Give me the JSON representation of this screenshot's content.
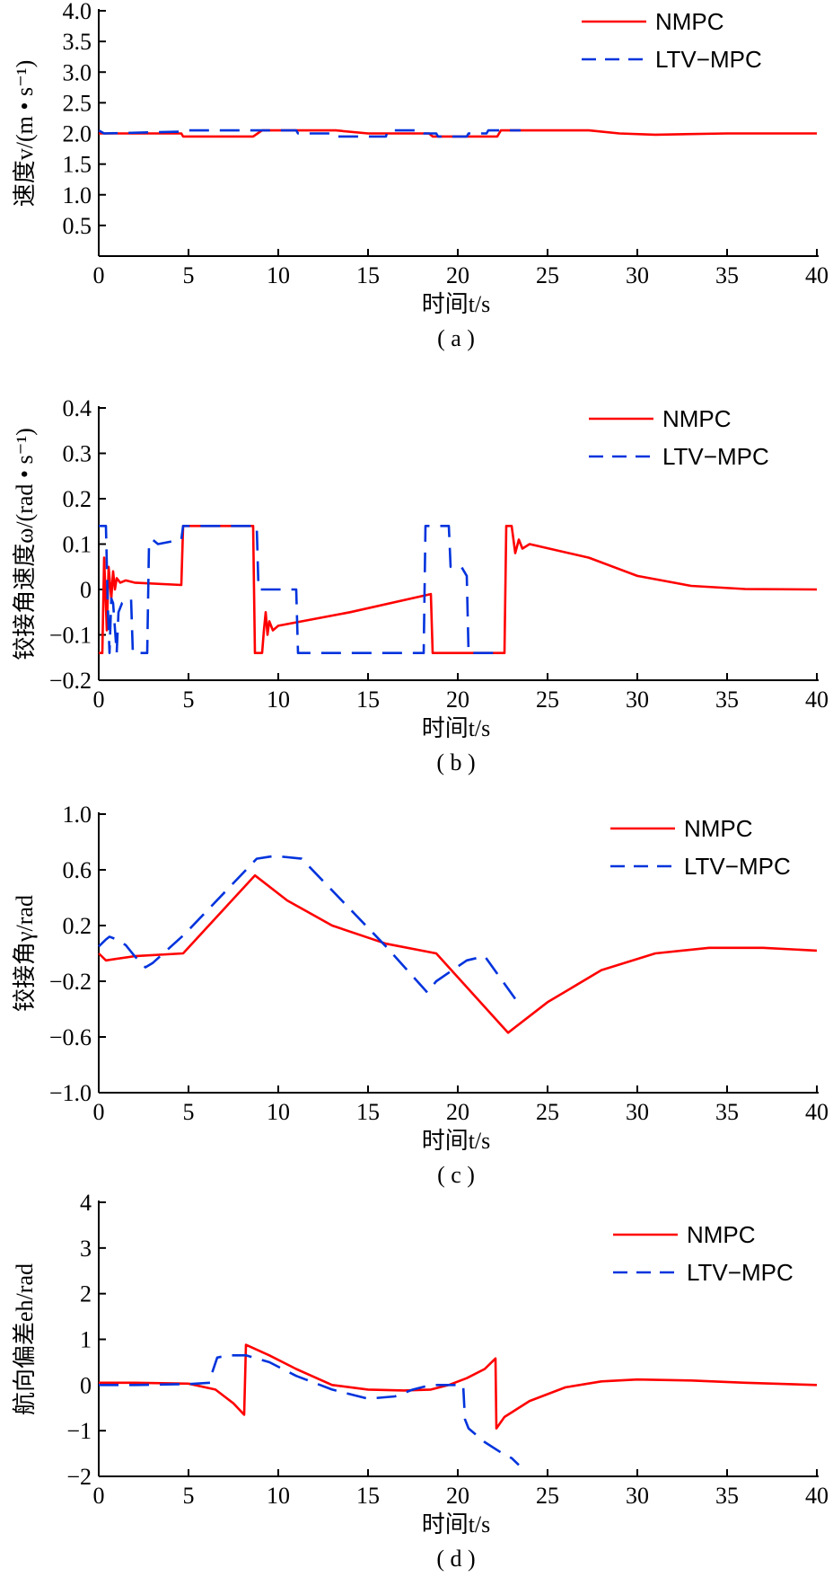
{
  "legend": {
    "nmpc": "NMPC",
    "ltv": "LTV−MPC"
  },
  "colors": {
    "nmpc": "#ff0000",
    "ltv": "#0033dd"
  },
  "chart_data": [
    {
      "type": "line",
      "caption": "( a )",
      "xlabel": "时间t/s",
      "ylabel": "速度v/(m • s⁻¹)",
      "xlim": [
        0,
        40
      ],
      "ylim": [
        0,
        4.0
      ],
      "xticks": [
        0,
        5,
        10,
        15,
        20,
        25,
        30,
        35,
        40
      ],
      "xtick_labels": [
        "0",
        "5",
        "10",
        "15",
        "20",
        "25",
        "30",
        "35",
        "40"
      ],
      "yticks": [
        0.5,
        1.0,
        1.5,
        2.0,
        2.5,
        3.0,
        3.5,
        4.0
      ],
      "ytick_labels": [
        "0.5",
        "1.0",
        "1.5",
        "2.0",
        "2.5",
        "3.0",
        "3.5",
        "4.0"
      ],
      "series": [
        {
          "name": "NMPC",
          "style": "solid",
          "x": [
            0,
            4.6,
            4.7,
            8.6,
            9.1,
            13.2,
            15,
            18.4,
            18.6,
            22.2,
            22.4,
            27.3,
            29,
            31,
            35,
            40
          ],
          "y": [
            2.0,
            2.0,
            1.95,
            1.95,
            2.05,
            2.05,
            2.0,
            2.0,
            1.95,
            1.95,
            2.05,
            2.05,
            2.0,
            1.98,
            2.0,
            2.0
          ]
        },
        {
          "name": "LTV−MPC",
          "style": "dashed",
          "x": [
            0,
            0.3,
            4.6,
            4.8,
            9.0,
            9.1,
            11.0,
            11.1,
            13.2,
            13.3,
            16.0,
            16.1,
            18.0,
            18.1,
            18.8,
            18.9,
            20.5,
            20.6,
            21.6,
            21.7,
            23.5
          ],
          "y": [
            2.05,
            2.0,
            2.03,
            2.05,
            2.05,
            2.05,
            2.05,
            2.0,
            2.0,
            1.95,
            1.95,
            2.05,
            2.05,
            2.0,
            2.0,
            1.95,
            1.95,
            2.0,
            2.0,
            2.05,
            2.05
          ]
        }
      ]
    },
    {
      "type": "line",
      "caption": "( b )",
      "xlabel": "时间t/s",
      "ylabel": "铰接角速度ω/(rad • s⁻¹)",
      "xlim": [
        0,
        40
      ],
      "ylim": [
        -0.2,
        0.4
      ],
      "xticks": [
        0,
        5,
        10,
        15,
        20,
        25,
        30,
        35,
        40
      ],
      "xtick_labels": [
        "0",
        "5",
        "10",
        "15",
        "20",
        "25",
        "30",
        "35",
        "40"
      ],
      "yticks": [
        -0.2,
        -0.1,
        0,
        0.1,
        0.2,
        0.3,
        0.4
      ],
      "ytick_labels": [
        "−0.2",
        "−0.1",
        "0",
        "0.1",
        "0.2",
        "0.3",
        "0.4"
      ],
      "series": [
        {
          "name": "NMPC",
          "style": "solid",
          "x": [
            0,
            0.2,
            0.3,
            0.45,
            0.55,
            0.7,
            0.8,
            0.9,
            1.0,
            1.2,
            1.5,
            2.0,
            4.6,
            4.7,
            8.6,
            8.7,
            9.1,
            9.2,
            9.3,
            9.4,
            9.5,
            9.7,
            10.0,
            14.0,
            18.5,
            18.6,
            22.6,
            22.7,
            23.0,
            23.2,
            23.4,
            23.6,
            24.0,
            27.3,
            30,
            33,
            36,
            40
          ],
          "y": [
            -0.14,
            -0.14,
            0.07,
            -0.09,
            0.05,
            -0.02,
            0.04,
            0.0,
            0.025,
            0.015,
            0.02,
            0.015,
            0.01,
            0.14,
            0.14,
            -0.14,
            -0.14,
            -0.09,
            -0.05,
            -0.1,
            -0.07,
            -0.09,
            -0.08,
            -0.05,
            -0.01,
            -0.14,
            -0.14,
            0.14,
            0.14,
            0.08,
            0.11,
            0.09,
            0.1,
            0.07,
            0.03,
            0.008,
            0.001,
            0
          ]
        },
        {
          "name": "LTV−MPC",
          "style": "dashed",
          "x": [
            0,
            0.4,
            0.5,
            0.6,
            0.7,
            0.8,
            1.0,
            1.1,
            1.3,
            1.8,
            1.9,
            2.7,
            2.8,
            3.0,
            3.3,
            4.6,
            4.7,
            8.8,
            8.9,
            11.0,
            11.1,
            18.1,
            18.2,
            19.5,
            19.6,
            20.2,
            20.5,
            20.6,
            22.5
          ],
          "y": [
            0.14,
            0.14,
            -0.03,
            -0.14,
            -0.02,
            -0.03,
            -0.14,
            -0.05,
            -0.03,
            -0.02,
            -0.14,
            -0.14,
            0.1,
            0.11,
            0.1,
            0.11,
            0.14,
            0.14,
            0.0,
            0.0,
            -0.14,
            -0.14,
            0.14,
            0.14,
            0.05,
            0.05,
            0.03,
            -0.14,
            -0.14
          ]
        }
      ]
    },
    {
      "type": "line",
      "caption": "( c )",
      "xlabel": "时间t/s",
      "ylabel": "铰接角γ/rad",
      "xlim": [
        0,
        40
      ],
      "ylim": [
        -1.0,
        1.0
      ],
      "xticks": [
        0,
        5,
        10,
        15,
        20,
        25,
        30,
        35,
        40
      ],
      "xtick_labels": [
        "0",
        "5",
        "10",
        "15",
        "20",
        "25",
        "30",
        "35",
        "40"
      ],
      "yticks": [
        -1.0,
        -0.6,
        -0.2,
        0.2,
        0.6,
        1.0
      ],
      "ytick_labels": [
        "−1.0",
        "−0.6",
        "−0.2",
        "0.2",
        "0.6",
        "1.0"
      ],
      "series": [
        {
          "name": "NMPC",
          "style": "solid",
          "x": [
            0,
            0.4,
            2.0,
            4.7,
            8.7,
            10.5,
            13,
            16,
            18.8,
            22.8,
            25,
            28,
            31,
            34,
            37,
            40
          ],
          "y": [
            0.0,
            -0.05,
            -0.02,
            0.0,
            0.56,
            0.38,
            0.2,
            0.07,
            0.0,
            -0.57,
            -0.35,
            -0.12,
            0.0,
            0.04,
            0.04,
            0.02
          ]
        },
        {
          "name": "LTV−MPC",
          "style": "dashed",
          "x": [
            0,
            0.4,
            0.6,
            1.0,
            1.5,
            2.0,
            2.6,
            3.0,
            3.6,
            4.8,
            8.8,
            9.8,
            11.3,
            16,
            18.3,
            18.8,
            20.5,
            21.5,
            23.5
          ],
          "y": [
            0.05,
            0.1,
            0.12,
            0.1,
            0.06,
            -0.02,
            -0.1,
            -0.07,
            0.0,
            0.14,
            0.68,
            0.7,
            0.68,
            0.05,
            -0.28,
            -0.2,
            -0.05,
            -0.02,
            -0.38
          ]
        }
      ]
    },
    {
      "type": "line",
      "caption": "( d )",
      "xlabel": "时间t/s",
      "ylabel": "航向偏差eh/rad",
      "xlim": [
        0,
        40
      ],
      "ylim": [
        -2,
        4
      ],
      "xticks": [
        0,
        5,
        10,
        15,
        20,
        25,
        30,
        35,
        40
      ],
      "xtick_labels": [
        "0",
        "5",
        "10",
        "15",
        "20",
        "25",
        "30",
        "35",
        "40"
      ],
      "yticks": [
        -2,
        -1,
        0,
        1,
        2,
        3,
        4
      ],
      "ytick_labels": [
        "−2",
        "−1",
        "0",
        "1",
        "2",
        "3",
        "4"
      ],
      "series": [
        {
          "name": "NMPC",
          "style": "solid",
          "x": [
            0,
            2,
            5,
            6.5,
            7.5,
            8.1,
            8.2,
            9.5,
            11,
            13,
            15,
            17,
            18.5,
            19.5,
            20.5,
            21.5,
            22.1,
            22.15,
            22.6,
            24,
            26,
            28,
            30,
            33,
            36,
            40
          ],
          "y": [
            0.05,
            0.05,
            0.03,
            -0.1,
            -0.4,
            -0.65,
            0.88,
            0.65,
            0.35,
            0.0,
            -0.1,
            -0.12,
            -0.1,
            0.0,
            0.15,
            0.35,
            0.58,
            -0.95,
            -0.7,
            -0.35,
            -0.05,
            0.08,
            0.12,
            0.1,
            0.05,
            0.0
          ]
        },
        {
          "name": "LTV−MPC",
          "style": "dashed",
          "x": [
            0,
            2,
            5,
            6.2,
            6.3,
            6.6,
            7.2,
            8.2,
            9.5,
            11,
            13,
            15,
            16.5,
            17.5,
            18.5,
            20.3,
            20.4,
            20.6,
            21.5,
            22.5,
            23.0,
            23.4
          ],
          "y": [
            0.0,
            0.0,
            0.02,
            0.05,
            0.25,
            0.6,
            0.65,
            0.65,
            0.5,
            0.2,
            -0.1,
            -0.3,
            -0.25,
            -0.1,
            0.0,
            0.0,
            -0.75,
            -0.95,
            -1.25,
            -1.5,
            -1.6,
            -1.75
          ]
        }
      ]
    }
  ]
}
